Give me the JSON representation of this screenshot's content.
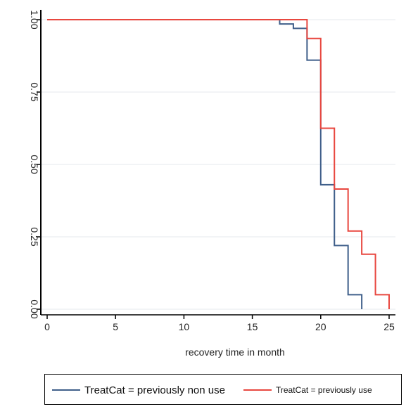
{
  "chart_data": {
    "type": "line",
    "title": "",
    "xlabel": "recovery  time in month",
    "ylabel": "",
    "xlim": [
      0,
      25
    ],
    "ylim": [
      0,
      1
    ],
    "xticks": [
      "0",
      "5",
      "10",
      "15",
      "20",
      "25"
    ],
    "yticks": [
      "0.00",
      "0.25",
      "0.50",
      "0.75",
      "1.00"
    ],
    "grid": true,
    "step": true,
    "legend_position": "bottom",
    "series": [
      {
        "name": "TreatCat = previously non use",
        "color": "#3f5f8a",
        "x": [
          0,
          17,
          18,
          19,
          20,
          21,
          22,
          23
        ],
        "y": [
          1.0,
          0.985,
          0.97,
          0.86,
          0.43,
          0.22,
          0.05,
          0.0
        ]
      },
      {
        "name": "TreatCat = previously  use",
        "color": "#e8473f",
        "x": [
          0,
          19,
          20,
          21,
          22,
          23,
          24,
          25
        ],
        "y": [
          1.0,
          0.935,
          0.625,
          0.415,
          0.27,
          0.19,
          0.05,
          0.0
        ]
      }
    ]
  }
}
